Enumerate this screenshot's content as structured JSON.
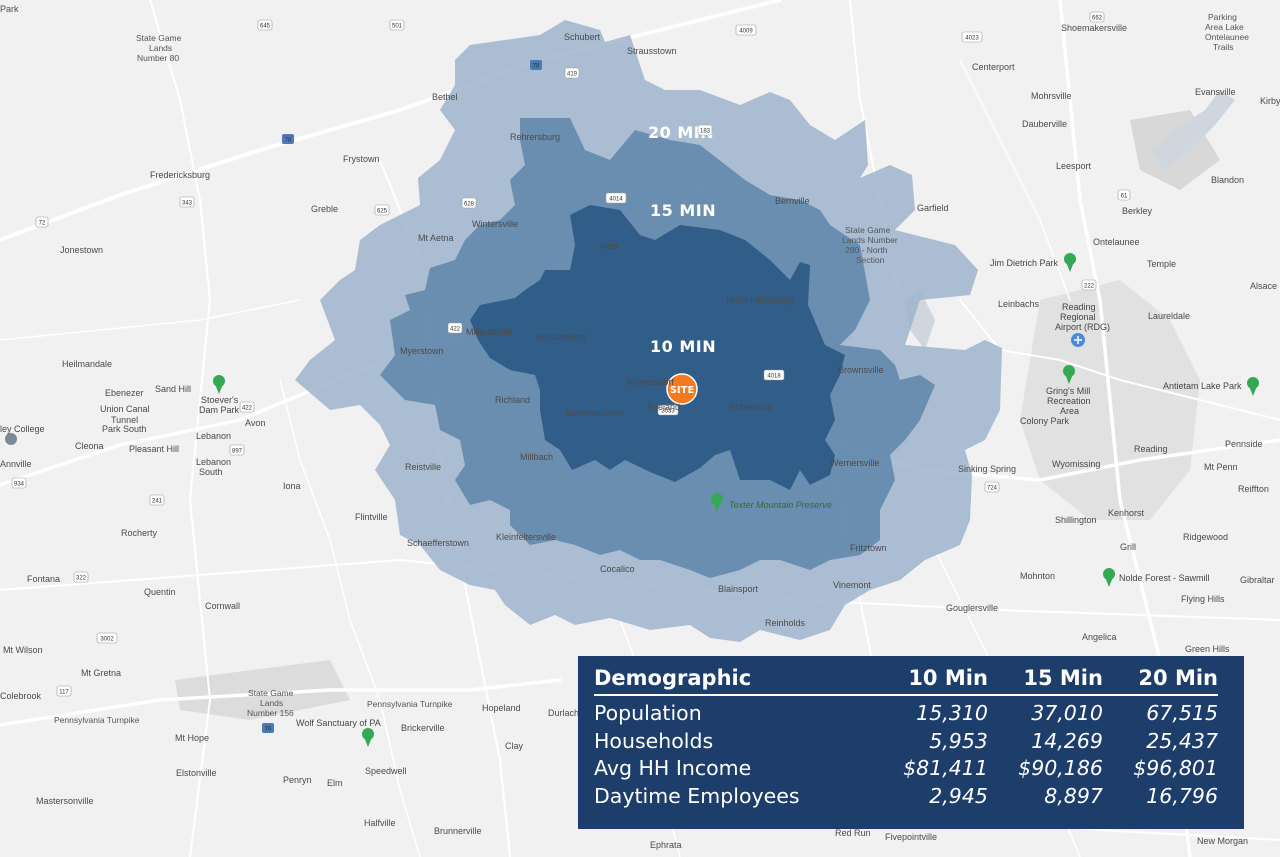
{
  "map": {
    "ring_labels": {
      "min20": "20 MIN",
      "min15": "15 MIN",
      "min10": "10 MIN"
    },
    "site_label": "SITE",
    "colors": {
      "ring20": "#9db4cc",
      "ring15": "#5f86aa",
      "ring10": "#2c5a85",
      "site": "#f37a20",
      "table_bg": "#1d3d6b"
    },
    "places": {
      "schubert": "Schubert",
      "strausstown": "Strausstown",
      "bethel": "Bethel",
      "rehrersburg": "Rehrersburg",
      "frystown": "Frystown",
      "fredericksburg": "Fredericksburg",
      "greble": "Greble",
      "wintersville": "Wintersville",
      "mt_aetna": "Mt Aetna",
      "host": "Host",
      "bernville": "Bernville",
      "north_heidelberg": "North Heidelberg",
      "myerstown": "Myerstown",
      "millardsville": "Millardsville",
      "stouchsburg": "Stouchsburg",
      "womelsdorf": "Womelsdorf",
      "ryeland": "Ryeland",
      "robesonia": "Robesonia",
      "newmanstown": "Newmanstown",
      "richland": "Richland",
      "millbach": "Millbach",
      "reistville": "Reistville",
      "wernersville": "Wernersville",
      "brownsville": "Brownsville",
      "schaefferstown": "Schaefferstown",
      "kleinfeltersville": "Kleinfeltersville",
      "cocalico": "Cocalico",
      "blainsport": "Blainsport",
      "reinholds": "Reinholds",
      "vinemont": "Vinemont",
      "fritztown": "Fritztown",
      "flintville": "Flintville",
      "jonestown": "Jonestown",
      "heilmandale": "Heilmandale",
      "ebenezer": "Ebenezer",
      "union_canal": "Union Canal",
      "tunnel": "Tunnel",
      "park_south": "Park South",
      "pleasant_hill": "Pleasant Hill",
      "cleona": "Cleona",
      "lebanon": "Lebanon",
      "lebanon_south_1": "Lebanon",
      "lebanon_south_2": "South",
      "avon": "Avon",
      "iona": "Iona",
      "rocherty": "Rocherty",
      "fontana": "Fontana",
      "quentin": "Quentin",
      "cornwall": "Cornwall",
      "mt_wilson": "Mt Wilson",
      "mt_gretna": "Mt Gretna",
      "colebrook": "Colebrook",
      "mt_hope": "Mt Hope",
      "elstonville": "Elstonville",
      "penryn": "Penryn",
      "elm": "Elm",
      "mastersonville": "Mastersonville",
      "halfville": "Halfville",
      "brunnerville": "Brunnerville",
      "brickerville": "Brickerville",
      "speedwell": "Speedwell",
      "hopeland": "Hopeland",
      "clay": "Clay",
      "durlach": "Durlach",
      "ephrata": "Ephrata",
      "red_run": "Red Run",
      "fivepointville": "Fivepointville",
      "new_morgan": "New Morgan",
      "centerport": "Centerport",
      "mohrsville": "Mohrsville",
      "dauberville": "Dauberville",
      "leesport": "Leesport",
      "garfield": "Garfield",
      "shoemakersville": "Shoemakersville",
      "evansville": "Evansville",
      "blandon": "Blandon",
      "berkley": "Berkley",
      "ontelaunee": "Ontelaunee",
      "temple": "Temple",
      "leinbachs": "Leinbachs",
      "laureldale": "Laureldale",
      "reading": "Reading",
      "colony_park": "Colony Park",
      "wyomissing": "Wyomissing",
      "sinking_spring": "Sinking Spring",
      "shillington": "Shillington",
      "kenhorst": "Kenhorst",
      "grill": "Grill",
      "mohnton": "Mohnton",
      "ridgewood": "Ridgewood",
      "gouglersville": "Gouglersville",
      "flying_hills": "Flying Hills",
      "angelica": "Angelica",
      "green_hills": "Green Hills",
      "pennside": "Pennside",
      "mt_penn": "Mt Penn",
      "reiffton": "Reiffton",
      "gibraltar": "Gibraltar",
      "alsace": "Alsace",
      "kirby": "Kirby",
      "parking_1": "Parking",
      "parking_2": "Area Lake",
      "parking_3": "Ontelaunee",
      "parking_4": "Trails",
      "state_game_80_1": "State Game",
      "state_game_80_2": "Lands",
      "state_game_80_3": "Number 80",
      "state_game_280_1": "State Game",
      "state_game_280_2": "Lands Number",
      "state_game_280_3": "280 - North",
      "state_game_280_4": "Section",
      "state_game_156_1": "State Game",
      "state_game_156_2": "Lands",
      "state_game_156_3": "Number 156",
      "lebanon_valley": "ley College",
      "annville": "Annville",
      "sand_hill": "Sand Hill",
      "park": "Park",
      "texter": "Texter Mountain Preserve",
      "stoevers_1": "Stoever's",
      "stoevers_2": "Dam Park",
      "dietrich": "Jim Dietrich Park",
      "reading_airport_1": "Reading",
      "reading_airport_2": "Regional",
      "reading_airport_3": "Airport (RDG)",
      "grings_1": "Gring's Mill",
      "grings_2": "Recreation",
      "grings_3": "Area",
      "antietam": "Antietam Lake Park",
      "nolde": "Nolde Forest - Sawmill",
      "wolf": "Wolf Sanctuary of PA",
      "pa_turnpike": "Pennsylvania Turnpike"
    },
    "shields": {
      "s645": "645",
      "s501a": "501",
      "s183": "183",
      "s78": "78",
      "s419": "419",
      "s4009": "4009",
      "s4023": "4023",
      "s662": "662",
      "s61": "61",
      "s222": "222",
      "s343": "343",
      "s625": "625",
      "s628": "628",
      "s4014": "4014",
      "s422": "422",
      "s897": "897",
      "s72": "72",
      "s241": "241",
      "s934": "934",
      "s322": "322",
      "s3002": "3002",
      "s117": "117",
      "s76": "76",
      "s724": "724",
      "s4018": "4018",
      "s3033": "3033"
    }
  },
  "table": {
    "headers": [
      "Demographic",
      "10 Min",
      "15 Min",
      "20 Min"
    ],
    "rows": [
      {
        "label": "Population",
        "v10": "15,310",
        "v15": "37,010",
        "v20": "67,515"
      },
      {
        "label": "Households",
        "v10": "5,953",
        "v15": "14,269",
        "v20": "25,437"
      },
      {
        "label": "Avg HH Income",
        "v10": "$81,411",
        "v15": "$90,186",
        "v20": "$96,801"
      },
      {
        "label": "Daytime Employees",
        "v10": "2,945",
        "v15": "8,897",
        "v20": "16,796"
      }
    ]
  }
}
